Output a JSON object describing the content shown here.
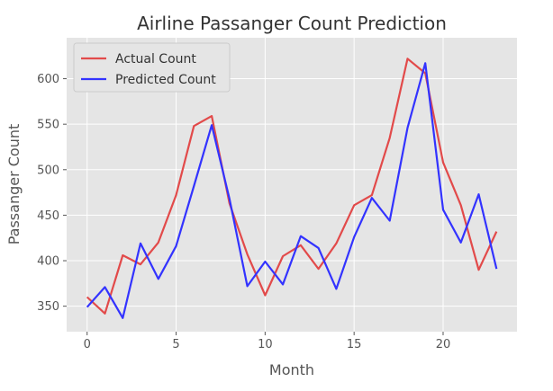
{
  "chart_data": {
    "type": "line",
    "title": "Airline Passanger Count Prediction",
    "xlabel": "Month",
    "ylabel": "Passanger Count",
    "xlim": [
      -1.15,
      24.15
    ],
    "ylim": [
      322,
      645
    ],
    "xticks": [
      0,
      5,
      10,
      15,
      20
    ],
    "yticks": [
      350,
      400,
      450,
      500,
      550,
      600
    ],
    "grid": true,
    "legend": "top-left",
    "x": [
      0,
      1,
      2,
      3,
      4,
      5,
      6,
      7,
      8,
      9,
      10,
      11,
      12,
      13,
      14,
      15,
      16,
      17,
      18,
      19,
      20,
      21,
      22,
      23
    ],
    "series": [
      {
        "name": "Actual Count",
        "color": "#e24a4a",
        "values": [
          360,
          342,
          406,
          396,
          420,
          472,
          548,
          559,
          463,
          407,
          362,
          405,
          417,
          391,
          419,
          461,
          472,
          535,
          622,
          606,
          508,
          461,
          390,
          432
        ]
      },
      {
        "name": "Predicted Count",
        "color": "#3333ff",
        "values": [
          349,
          371,
          337,
          419,
          380,
          416,
          482,
          549,
          468,
          372,
          399,
          374,
          427,
          414,
          369,
          426,
          469,
          444,
          546,
          617,
          456,
          420,
          473,
          391
        ]
      }
    ],
    "colors": {
      "plot_background": "#e5e5e5",
      "grid": "#ffffff",
      "text": "#555555"
    }
  }
}
